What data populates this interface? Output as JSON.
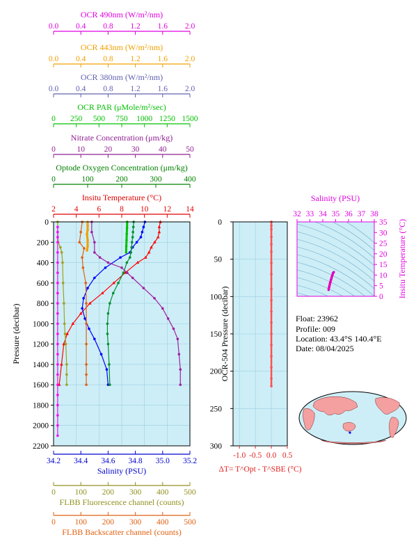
{
  "top_axes": [
    {
      "label": "OCR 490nm (W/m²/nm)",
      "ticks": [
        "0.0",
        "0.4",
        "0.8",
        "1.2",
        "1.6",
        "2.0"
      ],
      "color": "#e000e0"
    },
    {
      "label": "OCR 443nm (W/m²/nm)",
      "ticks": [
        "0.0",
        "0.4",
        "0.8",
        "1.2",
        "1.6",
        "2.0"
      ],
      "color": "#f0a000"
    },
    {
      "label": "OCR 380nm (W/m²/nm)",
      "ticks": [
        "0.0",
        "0.4",
        "0.8",
        "1.2",
        "1.6",
        "2.0"
      ],
      "color": "#6060b0"
    },
    {
      "label": "OCR PAR (μMole/m²/sec)",
      "ticks": [
        "0",
        "250",
        "500",
        "750",
        "1000",
        "1250",
        "1500"
      ],
      "color": "#00c000"
    },
    {
      "label": "Nitrate Concentration (μm/kg)",
      "ticks": [
        "0",
        "10",
        "20",
        "30",
        "40",
        "50"
      ],
      "color": "#902090"
    },
    {
      "label": "Optode Oxygen Concentration (μm/kg)",
      "ticks": [
        "0",
        "100",
        "200",
        "300",
        "400"
      ],
      "color": "#008000"
    },
    {
      "label": "Insitu Temperature (°C)",
      "ticks": [
        "2",
        "4",
        "6",
        "8",
        "10",
        "12",
        "14"
      ],
      "color": "#e00000"
    }
  ],
  "bottom_axes": [
    {
      "label": "Salinity (PSU)",
      "ticks": [
        "34.2",
        "34.4",
        "34.6",
        "34.8",
        "35.0",
        "35.2"
      ],
      "color": "#0000d0"
    },
    {
      "label": "FLBB Fluorescence channel (counts)",
      "ticks": [
        "0",
        "100",
        "200",
        "300",
        "400",
        "500"
      ],
      "color": "#909020"
    },
    {
      "label": "FLBB Backscatter channel (counts)",
      "ticks": [
        "0",
        "100",
        "200",
        "300",
        "400",
        "500"
      ],
      "color": "#e06010"
    }
  ],
  "main_y": {
    "label": "Pressure (decibar)",
    "ticks": [
      "0",
      "200",
      "400",
      "600",
      "800",
      "1000",
      "1200",
      "1400",
      "1600",
      "1800",
      "2000",
      "2200"
    ]
  },
  "dt_panel": {
    "ylabel": "OCR-504 Pressure (decibar)",
    "yticks": [
      "0",
      "50",
      "100",
      "150",
      "200",
      "250",
      "300"
    ],
    "xticks": [
      "-1.0",
      "-0.5",
      "0.0",
      "0.5"
    ],
    "xlabel": "ΔT= T^Opt - T^SBE (°C)"
  },
  "ts_panel": {
    "title": "Salinity (PSU)",
    "xticks": [
      "32",
      "33",
      "34",
      "35",
      "36",
      "37",
      "38"
    ],
    "ylabel": "Insitu Temperature (°C)",
    "yticks": [
      "0",
      "5",
      "10",
      "15",
      "20",
      "25",
      "30",
      "35"
    ]
  },
  "info": {
    "float": "Float:  23962",
    "profile": "Profile:  009",
    "location": "Location:  43.4°S  140.4°E",
    "date": "Date:  08/04/2025"
  },
  "colors": {
    "panel_bg": "#cdeef7",
    "grid": "#9ccfe0"
  },
  "chart_data": [
    {
      "type": "line",
      "title": "",
      "ylabel": "Pressure (decibar)",
      "ylim": [
        2200,
        0
      ],
      "series": [
        {
          "name": "Insitu Temperature (°C)",
          "axis": "temperature",
          "xlim": [
            2,
            14
          ],
          "x": [
            11.4,
            11.3,
            11.3,
            11.2,
            10.9,
            10.6,
            10.4,
            10.1,
            9.4,
            8.3,
            7.3,
            6.3,
            5.2,
            4.4,
            3.7,
            3.2,
            2.9,
            2.7,
            2.5
          ],
          "y": [
            0,
            50,
            100,
            150,
            200,
            250,
            300,
            350,
            400,
            500,
            600,
            700,
            800,
            900,
            1000,
            1100,
            1200,
            1400,
            1600
          ]
        },
        {
          "name": "Salinity (PSU)",
          "axis": "salinity",
          "xlim": [
            34.2,
            35.2
          ],
          "x": [
            34.87,
            34.86,
            34.85,
            34.84,
            34.81,
            34.78,
            34.76,
            34.69,
            34.58,
            34.5,
            34.45,
            34.42,
            34.41,
            34.43,
            34.46,
            34.5,
            34.55,
            34.59,
            34.6
          ],
          "y": [
            0,
            50,
            100,
            150,
            200,
            250,
            300,
            350,
            450,
            550,
            650,
            750,
            850,
            950,
            1050,
            1150,
            1300,
            1450,
            1600
          ]
        },
        {
          "name": "Optode Oxygen Concentration (μm/kg)",
          "axis": "oxygen",
          "xlim": [
            0,
            400
          ],
          "x": [
            235,
            234,
            233,
            232,
            230,
            229,
            227,
            224,
            215,
            205,
            190,
            175,
            165,
            160,
            158,
            158,
            160,
            163,
            165
          ],
          "y": [
            0,
            50,
            100,
            150,
            200,
            250,
            300,
            350,
            400,
            500,
            600,
            700,
            800,
            900,
            1000,
            1100,
            1200,
            1400,
            1600
          ]
        },
        {
          "name": "Nitrate Concentration (μm/kg)",
          "axis": "nitrate",
          "xlim": [
            0,
            50
          ],
          "x": [
            14,
            14,
            15,
            15,
            17,
            20,
            25,
            27,
            29,
            33,
            37,
            40,
            42,
            44,
            45.5,
            46,
            46.5,
            46.5
          ],
          "y": [
            0,
            100,
            200,
            300,
            350,
            400,
            450,
            500,
            550,
            650,
            750,
            850,
            950,
            1050,
            1150,
            1300,
            1450,
            1600
          ]
        },
        {
          "name": "FLBB Fluorescence channel (counts)",
          "axis": "fluor",
          "xlim": [
            0,
            500
          ],
          "x": [
            15,
            15,
            17,
            25,
            30,
            33,
            35,
            38,
            40,
            42,
            45,
            48,
            48,
            48
          ],
          "y": [
            0,
            100,
            200,
            250,
            300,
            400,
            600,
            800,
            1000,
            1100,
            1200,
            1400,
            1500,
            1600
          ]
        },
        {
          "name": "FLBB Backscatter channel (counts)",
          "axis": "bbp",
          "xlim": [
            0,
            500
          ],
          "x": [
            105,
            100,
            95,
            112,
            105,
            108,
            118,
            120,
            120,
            120,
            120,
            120,
            120
          ],
          "y": [
            0,
            100,
            200,
            260,
            350,
            450,
            600,
            800,
            1000,
            1200,
            1400,
            1500,
            1600
          ]
        },
        {
          "name": "OCR 490nm (W/m²/nm)",
          "axis": "ocr490",
          "xlim": [
            0,
            2
          ],
          "x": [
            0.06,
            0.06,
            0.06,
            0.06,
            0.06,
            0.06,
            0.06,
            0.06,
            0.06,
            0.06,
            0.06,
            0.06,
            0.06,
            0.06,
            0.06,
            0.06,
            0.06,
            0.06,
            0.06,
            0.06,
            0.06,
            0.06,
            0.06
          ],
          "y": [
            50,
            100,
            150,
            200,
            300,
            400,
            500,
            600,
            700,
            800,
            900,
            1000,
            1100,
            1200,
            1300,
            1400,
            1500,
            1600,
            1700,
            1800,
            1900,
            2000,
            2100
          ]
        },
        {
          "name": "OCR 443nm (W/m²/nm)",
          "axis": "ocr443",
          "xlim": [
            0,
            2
          ],
          "x": [
            0.5,
            0.5,
            0.5,
            0.49,
            0.5,
            0.5,
            0.49
          ],
          "y": [
            0,
            40,
            80,
            120,
            180,
            240,
            280
          ]
        },
        {
          "name": "OCR PAR (μMole/m²/sec)",
          "axis": "par",
          "xlim": [
            0,
            1500
          ],
          "x": [
            810,
            808,
            805,
            803,
            800,
            798
          ],
          "y": [
            0,
            60,
            120,
            180,
            240,
            300
          ]
        }
      ]
    },
    {
      "type": "scatter",
      "title": "",
      "xlabel": "ΔT= T^Opt - T^SBE (°C)",
      "ylabel": "OCR-504 Pressure (decibar)",
      "xlim": [
        -1.2,
        0.5
      ],
      "ylim": [
        300,
        0
      ],
      "x": [
        0.0,
        0.0,
        0.0,
        0.0,
        0.0,
        0.0,
        0.0,
        0.0,
        0.0,
        0.0,
        0.0,
        0.0,
        0.0,
        0.0,
        0.0,
        0.0,
        0.0,
        0.0
      ],
      "y": [
        0,
        5,
        10,
        20,
        30,
        40,
        55,
        70,
        90,
        105,
        120,
        135,
        150,
        165,
        180,
        195,
        210,
        220
      ]
    },
    {
      "type": "scatter",
      "title": "Salinity (PSU)",
      "xlabel": "Salinity (PSU)",
      "ylabel": "Insitu Temperature (°C)",
      "xlim": [
        32,
        38
      ],
      "ylim": [
        0,
        35
      ],
      "x": [
        34.45,
        34.5,
        34.58,
        34.65,
        34.72,
        34.8,
        34.86
      ],
      "y": [
        3,
        4.5,
        6.5,
        8,
        9.5,
        11,
        11.4
      ]
    }
  ]
}
